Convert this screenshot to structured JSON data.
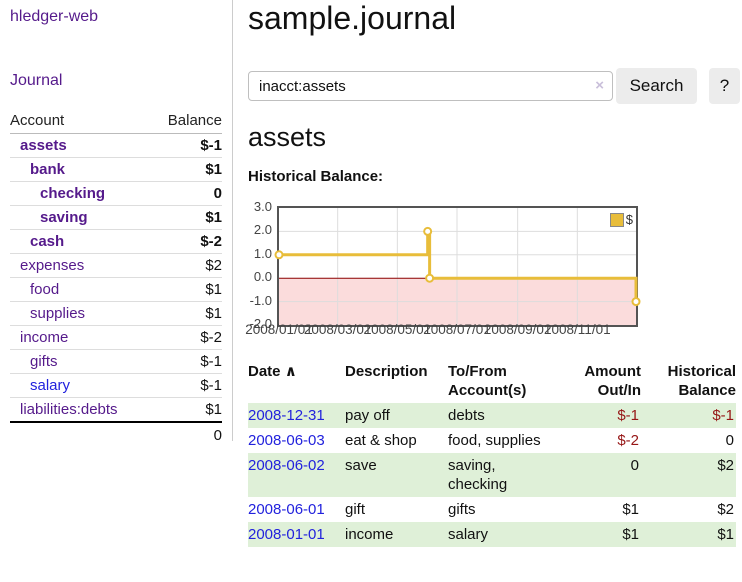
{
  "sidebar": {
    "brand": "hledger-web",
    "journal_link": "Journal",
    "accounts_table": {
      "headers": {
        "account": "Account",
        "balance": "Balance"
      },
      "rows": [
        {
          "name": "assets",
          "level": 1,
          "bold": true,
          "balance": "$-1",
          "balance_tone": "neg-strong",
          "link_style": "visited"
        },
        {
          "name": "bank",
          "level": 2,
          "bold": true,
          "balance": "$1",
          "balance_tone": "normal",
          "link_style": "visited"
        },
        {
          "name": "checking",
          "level": 3,
          "bold": true,
          "balance": "0",
          "balance_tone": "normal",
          "link_style": "visited"
        },
        {
          "name": "saving",
          "level": 3,
          "bold": true,
          "balance": "$1",
          "balance_tone": "normal",
          "link_style": "visited"
        },
        {
          "name": "cash",
          "level": 2,
          "bold": true,
          "balance": "$-2",
          "balance_tone": "neg-strong",
          "link_style": "visited"
        },
        {
          "name": "expenses",
          "level": 1,
          "bold": false,
          "balance": "$2",
          "balance_tone": "normal",
          "link_style": "visited"
        },
        {
          "name": "food",
          "level": 2,
          "bold": false,
          "balance": "$1",
          "balance_tone": "normal",
          "link_style": "visited"
        },
        {
          "name": "supplies",
          "level": 2,
          "bold": false,
          "balance": "$1",
          "balance_tone": "normal",
          "link_style": "visited"
        },
        {
          "name": "income",
          "level": 1,
          "bold": false,
          "balance": "$-2",
          "balance_tone": "neg-soft",
          "link_style": "visited"
        },
        {
          "name": "gifts",
          "level": 2,
          "bold": false,
          "balance": "$-1",
          "balance_tone": "neg-soft",
          "link_style": "visited"
        },
        {
          "name": "salary",
          "level": 2,
          "bold": false,
          "balance": "$-1",
          "balance_tone": "neg-soft",
          "link_style": "unvisited"
        },
        {
          "name": "liabilities:debts",
          "level": 1,
          "bold": false,
          "balance": "$1",
          "balance_tone": "normal",
          "link_style": "visited"
        }
      ],
      "total": "0"
    }
  },
  "main": {
    "title": "sample.journal",
    "search": {
      "query": "inacct:assets",
      "clear_icon": "×",
      "search_label": "Search",
      "help_label": "?"
    },
    "account_heading": "assets",
    "chart_label": "Historical Balance:",
    "chart_data": {
      "type": "line",
      "step": true,
      "title": "Historical Balance",
      "series": [
        {
          "name": "$",
          "color": "#e8bd3a",
          "points": [
            {
              "date": "2008-01-01",
              "value": 1
            },
            {
              "date": "2008-06-01",
              "value": 2
            },
            {
              "date": "2008-06-03",
              "value": 0
            },
            {
              "date": "2008-12-31",
              "value": -1
            }
          ]
        }
      ],
      "x_range": [
        "2008-01-01",
        "2008-12-31"
      ],
      "x_ticks": [
        "2008/01/01",
        "2008/03/01",
        "2008/05/01",
        "2008/07/01",
        "2008/09/01",
        "2008/11/01"
      ],
      "y_ticks": [
        "3.0",
        "2.0",
        "1.0",
        "0.0",
        "-1.0",
        "-2.0"
      ],
      "ylim": [
        -2,
        3
      ],
      "grid": true,
      "legend": {
        "label": "$",
        "position": "top-right"
      },
      "colors": {
        "line": "#e8bd3a",
        "marker_fill": "#ffffff",
        "negative_region_fill": "#fbdcdc",
        "zero_line": "#8b0000",
        "gridline": "#dddddd",
        "frame": "#545454"
      }
    },
    "register": {
      "headers": {
        "date": "Date",
        "sort_icon": "∧",
        "description": "Description",
        "accounts": "To/From Account(s)",
        "amount": "Amount Out/In",
        "balance": "Historical Balance"
      },
      "rows": [
        {
          "date": "2008-12-31",
          "description": "pay off",
          "accounts": "debts",
          "amount": "$-1",
          "balance": "$-1",
          "amount_neg": true,
          "balance_neg": true,
          "shaded": true
        },
        {
          "date": "2008-06-03",
          "description": "eat & shop",
          "accounts": "food, supplies",
          "amount": "$-2",
          "balance": "0",
          "amount_neg": true,
          "balance_neg": false,
          "shaded": false
        },
        {
          "date": "2008-06-02",
          "description": "save",
          "accounts": "saving, checking",
          "amount": "0",
          "balance": "$2",
          "amount_neg": false,
          "balance_neg": false,
          "shaded": true
        },
        {
          "date": "2008-06-01",
          "description": "gift",
          "accounts": "gifts",
          "amount": "$1",
          "balance": "$2",
          "amount_neg": false,
          "balance_neg": false,
          "shaded": false
        },
        {
          "date": "2008-01-01",
          "description": "income",
          "accounts": "salary",
          "amount": "$1",
          "balance": "$1",
          "amount_neg": false,
          "balance_neg": false,
          "shaded": true
        }
      ]
    }
  }
}
